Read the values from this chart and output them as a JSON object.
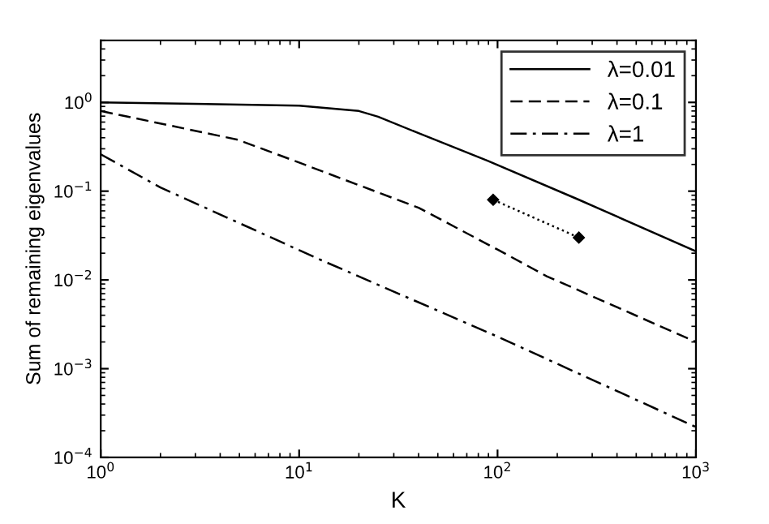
{
  "chart_data": {
    "type": "line",
    "xlabel": "K",
    "ylabel": "Sum of remaining eigenvalues",
    "log": "xy",
    "grid": false,
    "legend": "top right",
    "xlim": [
      1,
      1000
    ],
    "ylim": [
      0.0001,
      5
    ],
    "xticks": [
      {
        "value": 1,
        "label": "10$^{0}$"
      },
      {
        "value": 10,
        "label": "10$^{1}$"
      },
      {
        "value": 100,
        "label": "10$^{2}$"
      },
      {
        "value": 1000,
        "label": "10$^{3}$"
      }
    ],
    "yticks": [
      {
        "value": 0.0001,
        "label": "10$^{−4}$"
      },
      {
        "value": 0.001,
        "label": "10$^{−3}$"
      },
      {
        "value": 0.01,
        "label": "10$^{−2}$"
      },
      {
        "value": 0.1,
        "label": "10$^{−1}$"
      },
      {
        "value": 1,
        "label": "10$^{0}$"
      }
    ],
    "series": [
      {
        "name": "λ=0.01",
        "color": "#000000",
        "line_style": "solid",
        "x": [
          1,
          10,
          20,
          25,
          40,
          89,
          257,
          1000
        ],
        "values": [
          1.0,
          0.92,
          0.8,
          0.69,
          0.45,
          0.22,
          0.08,
          0.021
        ]
      },
      {
        "name": "λ=0.1",
        "color": "#000000",
        "line_style": "dashed",
        "x": [
          1,
          4.9,
          10,
          40,
          100,
          177,
          1000
        ],
        "values": [
          0.8,
          0.38,
          0.21,
          0.065,
          0.022,
          0.011,
          0.002
        ]
      },
      {
        "name": "λ=1",
        "color": "#000000",
        "line_style": "dashdot",
        "x": [
          1,
          2,
          12.7,
          100,
          1000
        ],
        "values": [
          0.26,
          0.11,
          0.017,
          0.0023,
          0.00022
        ]
      },
      {
        "color": "#000000",
        "line_style": "dotted",
        "marker": "diamond",
        "x": [
          95,
          257
        ],
        "values": [
          0.08,
          0.03
        ]
      }
    ]
  }
}
